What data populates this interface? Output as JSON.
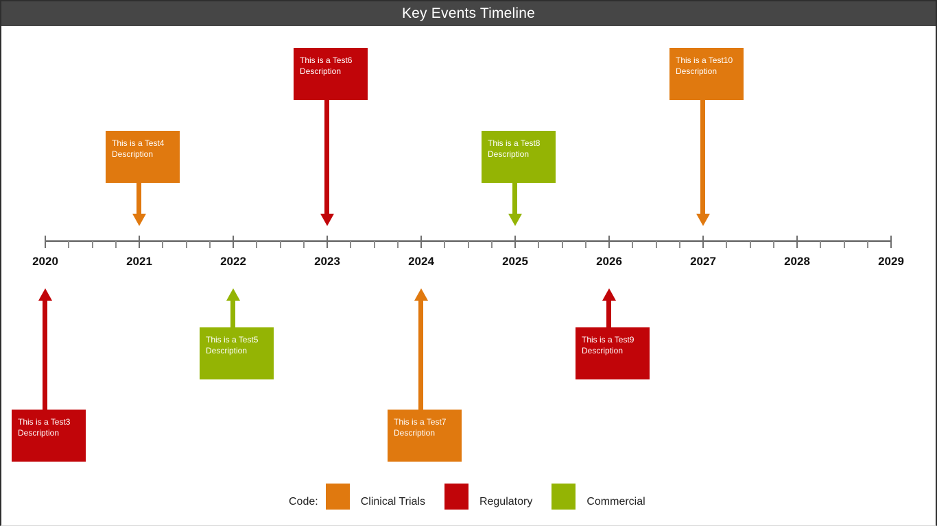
{
  "title": "Key Events Timeline",
  "legend": {
    "label": "Code:",
    "items": [
      {
        "name": "Clinical Trials",
        "color": "#e0790f"
      },
      {
        "name": "Regulatory",
        "color": "#c10509"
      },
      {
        "name": "Commercial",
        "color": "#94b404"
      }
    ]
  },
  "colors": {
    "header_bg": "#464646",
    "header_text": "#ffffff",
    "axis_line": "#5a5a5a",
    "tick_major": "#6e6e6e",
    "tick_minor": "#8c8c8c",
    "year_label": "#111111",
    "event_text": "#ffffff",
    "page_bg": "#ffffff",
    "border": "#2e2e2e"
  },
  "chart_data": {
    "type": "timeline",
    "title": "Key Events Timeline",
    "x_axis": {
      "start": 2020,
      "end": 2029,
      "major_tick_interval": 1,
      "minor_ticks_per_interval": 3,
      "tick_labels": [
        "2020",
        "2021",
        "2022",
        "2023",
        "2024",
        "2025",
        "2026",
        "2027",
        "2028",
        "2029"
      ]
    },
    "categories": [
      {
        "name": "Clinical Trials",
        "color": "#e0790f"
      },
      {
        "name": "Regulatory",
        "color": "#c10509"
      },
      {
        "name": "Commercial",
        "color": "#94b404"
      }
    ],
    "events": [
      {
        "label": "This is a Test3 Description",
        "year": 2020,
        "category": "Regulatory",
        "side": "below",
        "row": 2
      },
      {
        "label": "This is a Test4 Description",
        "year": 2021,
        "category": "Clinical Trials",
        "side": "above",
        "row": 1
      },
      {
        "label": "This is a Test5 Description",
        "year": 2022,
        "category": "Commercial",
        "side": "below",
        "row": 1
      },
      {
        "label": "This is a Test6 Description",
        "year": 2023,
        "category": "Regulatory",
        "side": "above",
        "row": 2
      },
      {
        "label": "This is a Test7 Description",
        "year": 2024,
        "category": "Clinical Trials",
        "side": "below",
        "row": 2
      },
      {
        "label": "This is a Test8 Description",
        "year": 2025,
        "category": "Commercial",
        "side": "above",
        "row": 1
      },
      {
        "label": "This is a Test9 Description",
        "year": 2026,
        "category": "Regulatory",
        "side": "below",
        "row": 1
      },
      {
        "label": "This is a Test10 Description",
        "year": 2027,
        "category": "Clinical Trials",
        "side": "above",
        "row": 2
      }
    ],
    "legend_position": "bottom"
  }
}
